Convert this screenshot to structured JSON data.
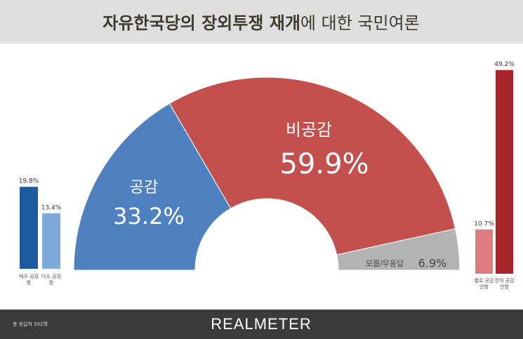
{
  "header": {
    "title_bold": "자유한국당의 장외투쟁 재개",
    "title_rest": "에 대한 국민여론"
  },
  "footer": {
    "note": "총 응답자 502명",
    "brand": "REALMETER"
  },
  "chart_data": [
    {
      "type": "pie",
      "categories": [
        "공감",
        "비공감",
        "모름/무응답"
      ],
      "values": [
        33.2,
        59.9,
        6.9
      ],
      "value_labels": [
        "33.2%",
        "59.9%",
        "6.9%"
      ],
      "colors": [
        "#4f81c1",
        "#c4504e",
        "#b3b3b3"
      ]
    },
    {
      "type": "bar",
      "categories": [
        "매우 공감함",
        "다소 공감함"
      ],
      "values": [
        19.8,
        13.4
      ],
      "value_labels": [
        "19.8%",
        "13.4%"
      ],
      "colors": [
        "#1f5aa0",
        "#7ea9db"
      ]
    },
    {
      "type": "bar",
      "categories": [
        "별로 공감 안함",
        "전혀 공감 안함"
      ],
      "values": [
        10.7,
        49.2
      ],
      "value_labels": [
        "10.7%",
        "49.2%"
      ],
      "colors": [
        "#de7b7e",
        "#a8272d"
      ]
    }
  ]
}
